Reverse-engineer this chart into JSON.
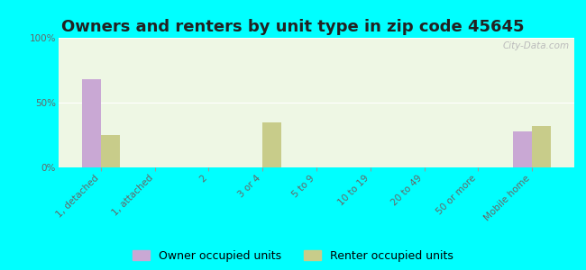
{
  "title": "Owners and renters by unit type in zip code 45645",
  "categories": [
    "1, detached",
    "1, attached",
    "2",
    "3 or 4",
    "5 to 9",
    "10 to 19",
    "20 to 49",
    "50 or more",
    "Mobile home"
  ],
  "owner_values": [
    68,
    0,
    0,
    0,
    0,
    0,
    0,
    0,
    28
  ],
  "renter_values": [
    25,
    0,
    0,
    35,
    0,
    0,
    0,
    0,
    32
  ],
  "owner_color": "#c9a8d4",
  "renter_color": "#c8cc8a",
  "background_color": "#00ffff",
  "plot_bg_color": "#eef7e4",
  "ylim": [
    0,
    100
  ],
  "yticks": [
    0,
    50,
    100
  ],
  "ytick_labels": [
    "0%",
    "50%",
    "100%"
  ],
  "bar_width": 0.35,
  "legend_owner": "Owner occupied units",
  "legend_renter": "Renter occupied units",
  "title_fontsize": 13,
  "tick_fontsize": 7.5,
  "legend_fontsize": 9,
  "watermark": "City-Data.com"
}
